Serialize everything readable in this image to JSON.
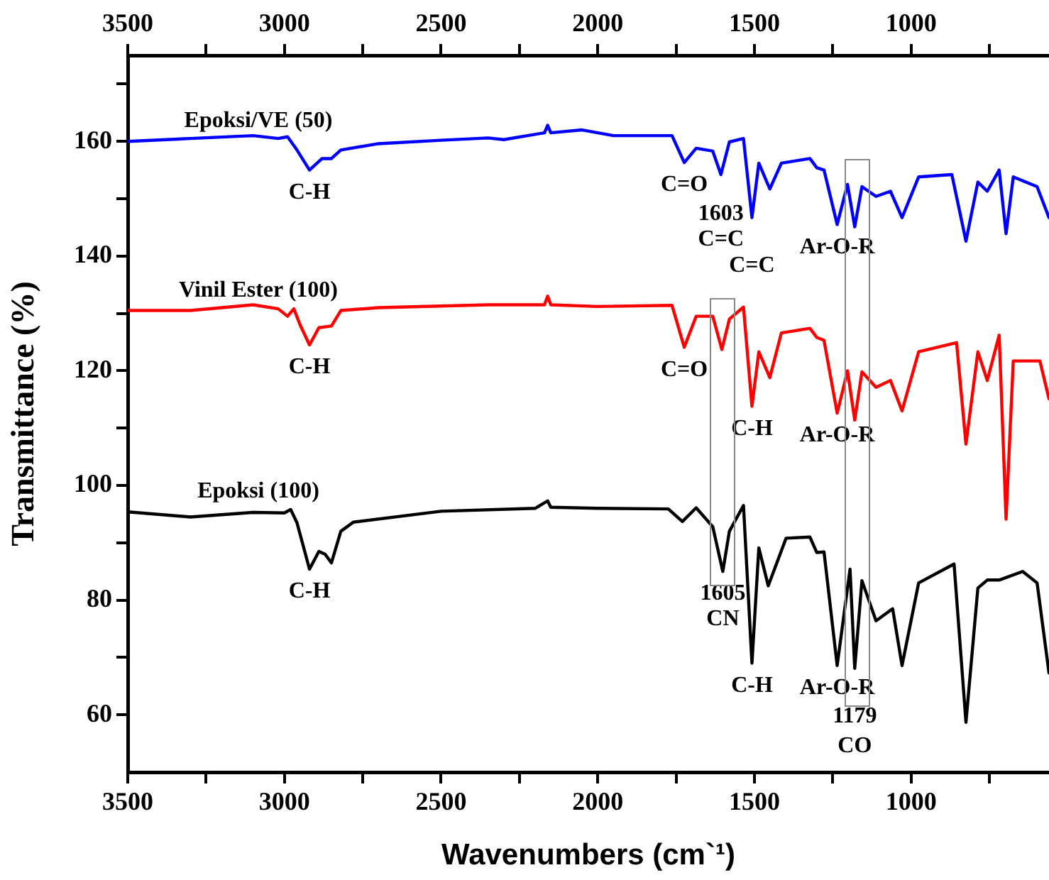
{
  "chart_data": {
    "type": "line",
    "xlabel": "Wavenumbers (cm`¹)",
    "ylabel": "Transmittance (%)",
    "xlim": [
      3500,
      560
    ],
    "ylim": [
      50,
      175
    ],
    "x2lim": [
      3500,
      560
    ],
    "xticks": [
      3500,
      {
        "value": 3250,
        "label": null
      },
      3000,
      {
        "value": 2750,
        "label": null
      },
      2500,
      {
        "value": 2250,
        "label": null
      },
      2000,
      {
        "value": 1750,
        "label": null
      },
      1500,
      {
        "value": 1250,
        "label": null
      },
      1000,
      {
        "value": 750,
        "label": null
      }
    ],
    "x2ticks": [
      3500,
      {
        "value": 3250,
        "label": null
      },
      3000,
      {
        "value": 2750,
        "label": null
      },
      2500,
      {
        "value": 2250,
        "label": null
      },
      2000,
      {
        "value": 1750,
        "label": null
      },
      1500,
      {
        "value": 1250,
        "label": null
      },
      1000,
      {
        "value": 750,
        "label": null
      }
    ],
    "yticks": [
      60,
      {
        "value": 70,
        "label": null
      },
      80,
      {
        "value": 90,
        "label": null
      },
      100,
      {
        "value": 110,
        "label": null
      },
      120,
      {
        "value": 130,
        "label": null
      },
      140,
      {
        "value": 150,
        "label": null
      },
      160,
      {
        "value": 170,
        "label": null
      }
    ],
    "marker": "none",
    "line_style": "solid",
    "series": [
      {
        "name": "Epoksi/VE (50)",
        "color": "#0000ff",
        "x": [
          3500,
          3300,
          3100,
          3020,
          2990,
          2960,
          2920,
          2880,
          2850,
          2820,
          2700,
          2500,
          2350,
          2300,
          2170,
          2160,
          2150,
          2050,
          1950,
          1763,
          1724,
          1686,
          1633,
          1607,
          1580,
          1535,
          1508,
          1486,
          1451,
          1414,
          1323,
          1301,
          1278,
          1236,
          1203,
          1180,
          1157,
          1112,
          1066,
          1029,
          976,
          870,
          825,
          787,
          757,
          719,
          697,
          674,
          598,
          560
        ],
        "values": [
          160,
          160.5,
          161,
          160.5,
          160.8,
          158.5,
          155,
          157,
          157,
          158.5,
          159.6,
          160.2,
          160.6,
          160.3,
          161.5,
          162.8,
          161.5,
          162,
          161,
          161,
          156.3,
          158.8,
          158.3,
          154.2,
          159.9,
          160.5,
          146.7,
          156.2,
          151.7,
          156.2,
          157,
          155.4,
          155,
          145.5,
          152.5,
          145.1,
          152.1,
          150.4,
          151.3,
          146.7,
          153.8,
          154.2,
          142.6,
          152.9,
          151.3,
          155,
          143.9,
          153.8,
          152.1,
          146.7
        ]
      },
      {
        "name": "Vinil Ester (100)",
        "color": "#ff0000",
        "x": [
          3500,
          3300,
          3100,
          3020,
          2990,
          2970,
          2950,
          2920,
          2890,
          2850,
          2820,
          2700,
          2350,
          2170,
          2160,
          2150,
          2000,
          1763,
          1724,
          1686,
          1633,
          1604,
          1580,
          1535,
          1508,
          1486,
          1451,
          1414,
          1323,
          1301,
          1278,
          1236,
          1203,
          1180,
          1157,
          1112,
          1066,
          1029,
          976,
          855,
          825,
          787,
          757,
          719,
          697,
          674,
          589,
          560
        ],
        "values": [
          130.5,
          130.5,
          131.5,
          130.8,
          129.5,
          130.8,
          128,
          124.5,
          127.5,
          127.8,
          130.5,
          131,
          131.5,
          131.5,
          133,
          131.5,
          131.2,
          131.4,
          124.1,
          129.5,
          129.5,
          123.7,
          129,
          131.1,
          113.8,
          123.3,
          118.8,
          126.6,
          127.4,
          125.8,
          125.3,
          112.6,
          120,
          111.4,
          119.8,
          117.1,
          118.3,
          113,
          123.3,
          124.9,
          107.2,
          123.3,
          118.3,
          126.2,
          94.1,
          121.7,
          121.7,
          115.1
        ]
      },
      {
        "name": "Epoksi (100)",
        "color": "#000000",
        "x": [
          3500,
          3300,
          3100,
          3000,
          2980,
          2960,
          2920,
          2890,
          2870,
          2850,
          2820,
          2780,
          2500,
          2200,
          2160,
          2150,
          2000,
          1775,
          1730,
          1686,
          1633,
          1601,
          1580,
          1535,
          1508,
          1486,
          1456,
          1399,
          1323,
          1301,
          1278,
          1236,
          1195,
          1180,
          1157,
          1112,
          1059,
          1029,
          976,
          863,
          825,
          787,
          757,
          719,
          644,
          598,
          560
        ],
        "values": [
          95.4,
          94.5,
          95.3,
          95.2,
          95.8,
          93.5,
          85.4,
          88.5,
          88,
          86.5,
          92,
          93.6,
          95.5,
          96,
          97.3,
          96.2,
          96,
          95.9,
          93.7,
          96.1,
          92.8,
          85,
          92,
          96.5,
          69,
          89.1,
          82.5,
          90.8,
          91,
          88.3,
          88.4,
          68.6,
          85.4,
          68.1,
          83.4,
          76.4,
          78.5,
          68.6,
          83,
          86.3,
          58.7,
          82.1,
          83.5,
          83.5,
          85,
          83,
          67.3
        ]
      }
    ],
    "annotations": [
      {
        "text": "C-H",
        "x": 2920,
        "y": 155
      },
      {
        "text": "C=O",
        "x": 1724,
        "y": 156.3
      },
      {
        "text": "1603",
        "x": 1607,
        "y": 154.2
      },
      {
        "text": "C=C",
        "x": 1607,
        "y": 154.2
      },
      {
        "text": "C=C",
        "x": 1508,
        "y": 146.7
      },
      {
        "text": "Ar-O-R",
        "x": 1236,
        "y": 145.5
      },
      {
        "text": "C-H",
        "x": 2920,
        "y": 124.5
      },
      {
        "text": "C=O",
        "x": 1724,
        "y": 124.1
      },
      {
        "text": "C-H",
        "x": 1508,
        "y": 113.8
      },
      {
        "text": "Ar-O-R",
        "x": 1236,
        "y": 112.6
      },
      {
        "text": "C-H",
        "x": 2920,
        "y": 85.4
      },
      {
        "text": "1605",
        "x": 1601,
        "y": 85
      },
      {
        "text": "CN",
        "x": 1601,
        "y": 85
      },
      {
        "text": "C-H",
        "x": 1508,
        "y": 69
      },
      {
        "text": "Ar-O-R",
        "x": 1236,
        "y": 68.6
      },
      {
        "text": "1179",
        "x": 1180,
        "y": 68.1
      },
      {
        "text": "CO",
        "x": 1180,
        "y": 68.1
      }
    ]
  }
}
